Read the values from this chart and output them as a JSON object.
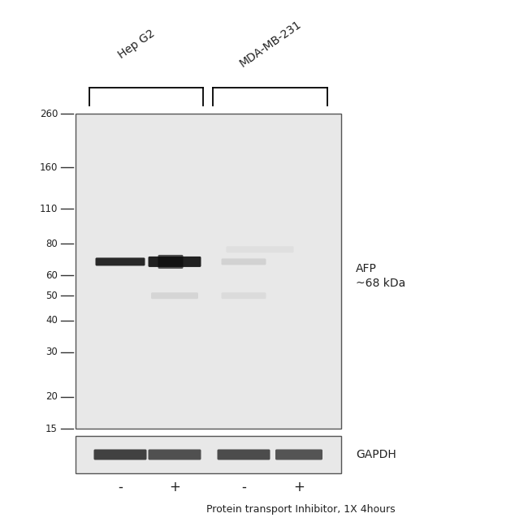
{
  "fig_width": 6.5,
  "fig_height": 6.43,
  "bg_color": "#ffffff",
  "gel_bg": "#e8e8e8",
  "gel_edge": "#555555",
  "mw_markers": [
    260,
    160,
    110,
    80,
    60,
    50,
    40,
    30,
    20,
    15
  ],
  "cell_lines": [
    "Hep G2",
    "MDA-MB-231"
  ],
  "lane_labels": [
    "-",
    "+",
    "-",
    "+"
  ],
  "xlabel": "Protein transport Inhibitor, 1X 4hours",
  "afp_line1": "AFP",
  "afp_line2": "~68 kDa",
  "gapdh_label": "GAPDH",
  "band_color_dark": "#1a1a1a",
  "band_color_medium": "#555555",
  "band_color_faint": "#aaaaaa",
  "gapdh_band_color": "#2a2a2a"
}
